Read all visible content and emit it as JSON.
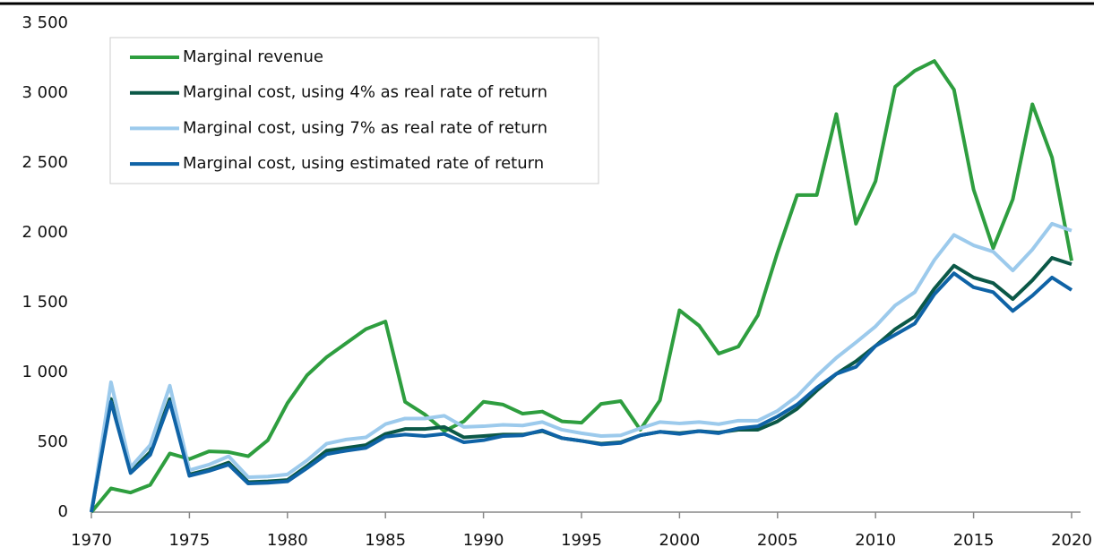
{
  "chart_data": {
    "type": "line",
    "x": [
      1970,
      1971,
      1972,
      1973,
      1974,
      1975,
      1976,
      1977,
      1978,
      1979,
      1980,
      1981,
      1982,
      1983,
      1984,
      1985,
      1986,
      1987,
      1988,
      1989,
      1990,
      1991,
      1992,
      1993,
      1994,
      1995,
      1996,
      1997,
      1998,
      1999,
      2000,
      2001,
      2002,
      2003,
      2004,
      2005,
      2006,
      2007,
      2008,
      2009,
      2010,
      2011,
      2012,
      2013,
      2014,
      2015,
      2016,
      2017,
      2018,
      2019,
      2020
    ],
    "series": [
      {
        "name": "Marginal revenue",
        "color": "#2e9e3f",
        "values": [
          0,
          170,
          140,
          195,
          420,
          380,
          435,
          430,
          400,
          515,
          780,
          980,
          1110,
          1210,
          1310,
          1365,
          790,
          700,
          580,
          650,
          790,
          770,
          705,
          720,
          650,
          640,
          775,
          795,
          590,
          800,
          1445,
          1335,
          1135,
          1185,
          1410,
          1860,
          2270,
          2270,
          2850,
          2065,
          2370,
          3045,
          3160,
          3230,
          3025,
          2310,
          1890,
          2240,
          2920,
          2540,
          1800
        ]
      },
      {
        "name": "Marginal cost, using 4% as real rate of return",
        "color": "#0b5847",
        "values": [
          0,
          810,
          290,
          430,
          810,
          270,
          305,
          355,
          215,
          220,
          230,
          330,
          440,
          460,
          480,
          560,
          595,
          595,
          610,
          535,
          545,
          555,
          555,
          580,
          530,
          510,
          490,
          500,
          550,
          575,
          565,
          580,
          570,
          590,
          590,
          650,
          740,
          870,
          990,
          1080,
          1190,
          1310,
          1400,
          1600,
          1765,
          1680,
          1640,
          1525,
          1660,
          1820,
          1775
        ]
      },
      {
        "name": "Marginal cost, using 7% as real rate of return",
        "color": "#9ccaec",
        "values": [
          0,
          930,
          320,
          480,
          905,
          300,
          340,
          400,
          250,
          255,
          270,
          370,
          490,
          520,
          535,
          630,
          670,
          670,
          690,
          610,
          615,
          625,
          620,
          645,
          590,
          565,
          545,
          550,
          600,
          645,
          635,
          645,
          630,
          655,
          655,
          725,
          830,
          975,
          1105,
          1215,
          1330,
          1480,
          1575,
          1805,
          1985,
          1910,
          1865,
          1730,
          1880,
          2065,
          2015
        ]
      },
      {
        "name": "Marginal cost, using estimated rate of return",
        "color": "#0f63a6",
        "values": [
          0,
          790,
          280,
          410,
          790,
          260,
          295,
          340,
          205,
          210,
          220,
          315,
          415,
          440,
          460,
          540,
          555,
          545,
          560,
          500,
          515,
          545,
          550,
          585,
          530,
          510,
          485,
          495,
          550,
          575,
          560,
          580,
          565,
          600,
          615,
          685,
          770,
          890,
          990,
          1040,
          1190,
          1270,
          1350,
          1560,
          1710,
          1610,
          1575,
          1440,
          1550,
          1680,
          1590
        ]
      }
    ],
    "xlim": [
      1970,
      2020
    ],
    "xticks": [
      1970,
      1975,
      1980,
      1985,
      1990,
      1995,
      2000,
      2005,
      2010,
      2015,
      2020
    ],
    "ylim": [
      0,
      3500
    ],
    "yticks": [
      0,
      500,
      {
        "value": 1000,
        "label": "1 000"
      },
      {
        "value": 1500,
        "label": "1 500"
      },
      {
        "value": 2000,
        "label": "2 000"
      },
      {
        "value": 2500,
        "label": "2 500"
      },
      {
        "value": 3000,
        "label": "3 000"
      },
      {
        "value": 3500,
        "label": "3 500"
      }
    ],
    "legend": "upper-left"
  }
}
